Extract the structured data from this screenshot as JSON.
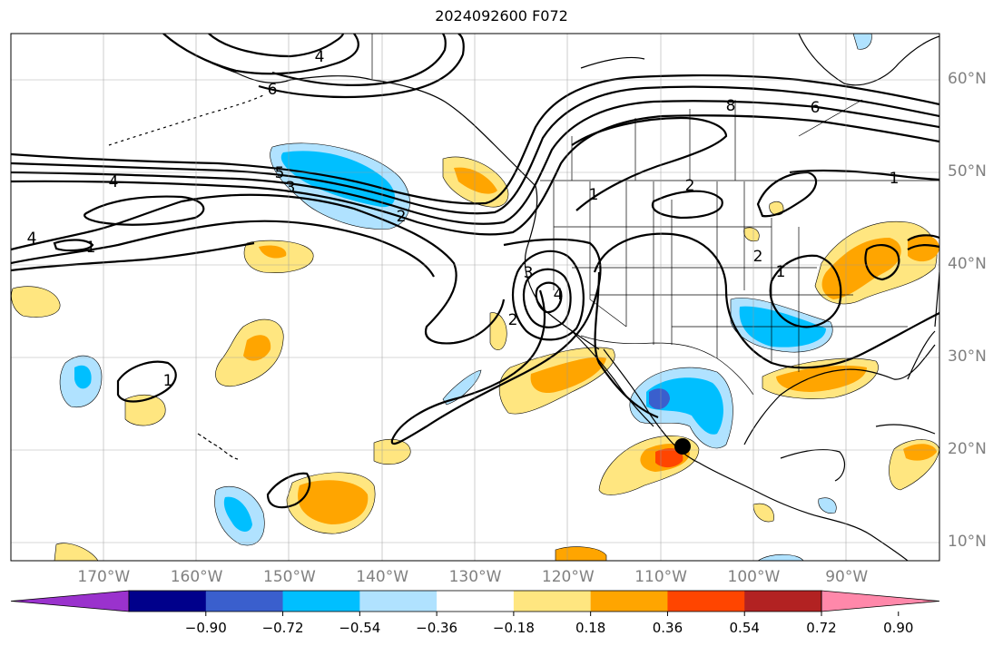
{
  "title": "2024092600 F072",
  "lat_labels": [
    {
      "label": "60°N",
      "lat": 60
    },
    {
      "label": "50°N",
      "lat": 50
    },
    {
      "label": "40°N",
      "lat": 40
    },
    {
      "label": "30°N",
      "lat": 30
    },
    {
      "label": "20°N",
      "lat": 20
    },
    {
      "label": "10°N",
      "lat": 10
    }
  ],
  "lon_labels": [
    {
      "label": "170°W",
      "lon": -170
    },
    {
      "label": "160°W",
      "lon": -160
    },
    {
      "label": "150°W",
      "lon": -150
    },
    {
      "label": "140°W",
      "lon": -140
    },
    {
      "label": "130°W",
      "lon": -130
    },
    {
      "label": "120°W",
      "lon": -120
    },
    {
      "label": "110°W",
      "lon": -110
    },
    {
      "label": "100°W",
      "lon": -100
    },
    {
      "label": "90°W",
      "lon": -90
    }
  ],
  "map_extent": {
    "lon": [
      -180,
      -80
    ],
    "lat": [
      8,
      65
    ]
  },
  "contour_labels": [
    "4",
    "4",
    "6",
    "5",
    "4",
    "3",
    "2",
    "1",
    "1",
    "2",
    "3",
    "4",
    "1",
    "2",
    "6",
    "8",
    "1",
    "2",
    "1"
  ],
  "colorbar": {
    "ticks": [
      "−0.90",
      "−0.72",
      "−0.54",
      "−0.36",
      "−0.18",
      "0.18",
      "0.36",
      "0.54",
      "0.72",
      "0.90"
    ],
    "colors": [
      "#9a32cd",
      "#00008b",
      "#3a5fcd",
      "#00bfff",
      "#b0e2ff",
      "#ffffff",
      "#ffe680",
      "#ffa500",
      "#ff4500",
      "#b22222",
      "#ff88aa"
    ]
  }
}
